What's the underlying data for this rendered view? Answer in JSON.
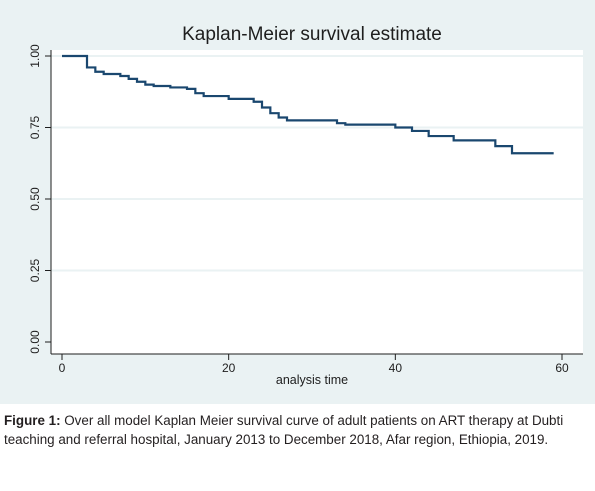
{
  "chart_data": {
    "type": "line",
    "title": "Kaplan-Meier survival estimate",
    "xlabel": "analysis time",
    "ylabel": "",
    "xlim": [
      0,
      60
    ],
    "ylim": [
      0,
      1
    ],
    "xticks": [
      "0",
      "20",
      "40",
      "60"
    ],
    "yticks": [
      "0.00",
      "0.25",
      "0.50",
      "0.75",
      "1.00"
    ],
    "grid": "horizontal",
    "series": [
      {
        "x": [
          0,
          3,
          4,
          5,
          7,
          8,
          9,
          10,
          11,
          13,
          15,
          16,
          17,
          20,
          23,
          24,
          25,
          26,
          27,
          33,
          34,
          40,
          42,
          44,
          47,
          52,
          54,
          59
        ],
        "y": [
          1.0,
          0.96,
          0.945,
          0.937,
          0.93,
          0.92,
          0.91,
          0.9,
          0.895,
          0.89,
          0.885,
          0.87,
          0.86,
          0.85,
          0.84,
          0.82,
          0.8,
          0.785,
          0.775,
          0.765,
          0.76,
          0.75,
          0.738,
          0.72,
          0.705,
          0.685,
          0.66,
          0.66
        ],
        "color": "#1a476f"
      }
    ],
    "colors": {
      "background": "#eaf2f3",
      "plot": "#ffffff",
      "line": "#1a476f"
    }
  },
  "caption": {
    "label": "Figure 1:",
    "text": " Over all model Kaplan Meier survival curve of adult patients on ART therapy at Dubti teaching and referral hospital, January 2013 to December 2018, Afar region, Ethiopia, 2019."
  }
}
